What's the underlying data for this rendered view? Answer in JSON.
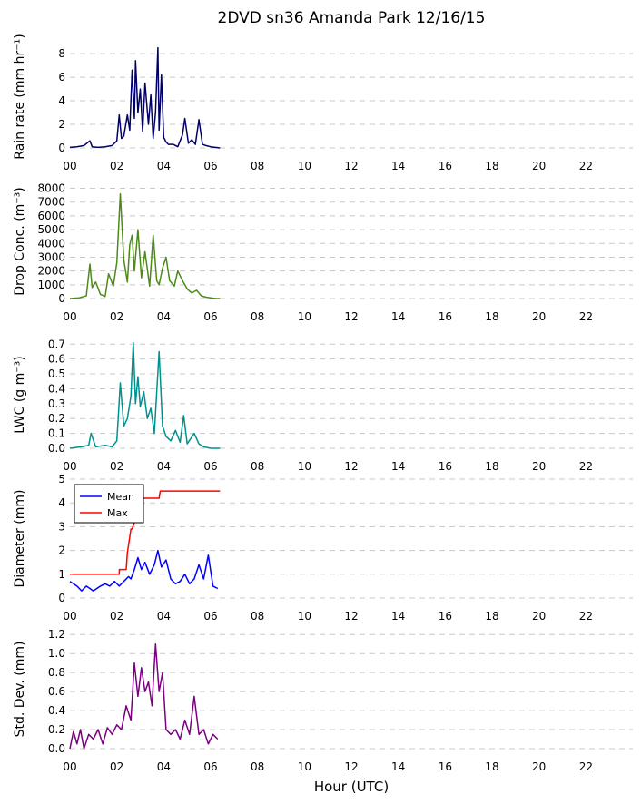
{
  "title": "2DVD sn36 Amanda Park 12/16/15",
  "xlabel": "Hour (UTC)",
  "x_ticks": [
    "00",
    "02",
    "04",
    "06",
    "08",
    "10",
    "12",
    "14",
    "16",
    "18",
    "20",
    "22"
  ],
  "chart_data": [
    {
      "type": "line",
      "ylabel": "Rain rate (mm hr⁻¹)",
      "xlim": [
        0,
        24
      ],
      "ylim": [
        0,
        8.7
      ],
      "yticks": [
        0,
        2,
        4,
        6,
        8
      ],
      "ytick_labels": [
        "0",
        "2",
        "4",
        "6",
        "8"
      ],
      "grid": true,
      "series": [
        {
          "color": "#000066",
          "x": [
            0.0,
            0.3,
            0.6,
            0.85,
            0.95,
            1.2,
            1.5,
            1.8,
            2.0,
            2.1,
            2.2,
            2.3,
            2.45,
            2.55,
            2.65,
            2.75,
            2.8,
            2.9,
            3.0,
            3.1,
            3.2,
            3.35,
            3.45,
            3.55,
            3.65,
            3.75,
            3.8,
            3.9,
            4.0,
            4.1,
            4.2,
            4.4,
            4.6,
            4.8,
            4.9,
            5.05,
            5.2,
            5.35,
            5.5,
            5.65,
            5.8,
            6.0,
            6.2,
            6.4
          ],
          "y": [
            0.05,
            0.1,
            0.2,
            0.6,
            0.1,
            0.05,
            0.1,
            0.2,
            0.6,
            2.8,
            0.8,
            1.0,
            2.8,
            1.5,
            6.6,
            2.5,
            7.4,
            3.0,
            5.0,
            1.4,
            5.5,
            2.0,
            4.5,
            0.8,
            3.0,
            8.5,
            1.5,
            6.2,
            0.9,
            0.5,
            0.3,
            0.3,
            0.1,
            1.1,
            2.5,
            0.4,
            0.7,
            0.3,
            2.4,
            0.3,
            0.2,
            0.1,
            0.05,
            0.0
          ]
        }
      ]
    },
    {
      "type": "line",
      "ylabel": "Drop Conc. (m⁻³)",
      "xlim": [
        0,
        24
      ],
      "ylim": [
        0,
        8300
      ],
      "yticks": [
        0,
        1000,
        2000,
        3000,
        4000,
        5000,
        6000,
        7000,
        8000
      ],
      "ytick_labels": [
        "0",
        "1000",
        "2000",
        "3000",
        "4000",
        "5000",
        "6000",
        "7000",
        "8000"
      ],
      "grid": true,
      "series": [
        {
          "color": "#4d8a1a",
          "x": [
            0.0,
            0.4,
            0.7,
            0.85,
            0.95,
            1.1,
            1.3,
            1.5,
            1.65,
            1.85,
            2.0,
            2.15,
            2.3,
            2.45,
            2.55,
            2.65,
            2.75,
            2.9,
            3.05,
            3.2,
            3.4,
            3.55,
            3.7,
            3.8,
            3.95,
            4.1,
            4.25,
            4.45,
            4.6,
            4.8,
            5.0,
            5.2,
            5.4,
            5.6,
            5.8,
            6.0,
            6.2,
            6.4
          ],
          "y": [
            0,
            50,
            200,
            2500,
            800,
            1200,
            300,
            150,
            1800,
            900,
            2600,
            7600,
            2800,
            1200,
            3900,
            4600,
            2000,
            5000,
            1500,
            3400,
            900,
            4600,
            1300,
            1000,
            2200,
            3000,
            1300,
            900,
            2000,
            1300,
            700,
            400,
            600,
            200,
            100,
            50,
            0,
            0
          ]
        }
      ]
    },
    {
      "type": "line",
      "ylabel": "LWC (g m⁻³)",
      "xlim": [
        0,
        24
      ],
      "ylim": [
        0,
        0.72
      ],
      "yticks": [
        0,
        0.1,
        0.2,
        0.3,
        0.4,
        0.5,
        0.6,
        0.7
      ],
      "ytick_labels": [
        "0.0",
        "0.1",
        "0.2",
        "0.3",
        "0.4",
        "0.5",
        "0.6",
        "0.7"
      ],
      "grid": true,
      "series": [
        {
          "color": "#009090",
          "x": [
            0.0,
            0.5,
            0.8,
            0.9,
            1.1,
            1.5,
            1.8,
            2.0,
            2.15,
            2.3,
            2.45,
            2.6,
            2.7,
            2.8,
            2.9,
            3.0,
            3.15,
            3.3,
            3.45,
            3.6,
            3.8,
            3.95,
            4.1,
            4.3,
            4.5,
            4.7,
            4.85,
            5.0,
            5.3,
            5.5,
            5.7,
            6.0,
            6.4
          ],
          "y": [
            0.0,
            0.01,
            0.02,
            0.1,
            0.01,
            0.02,
            0.01,
            0.05,
            0.44,
            0.15,
            0.2,
            0.35,
            0.71,
            0.3,
            0.48,
            0.28,
            0.38,
            0.2,
            0.27,
            0.1,
            0.65,
            0.15,
            0.08,
            0.05,
            0.12,
            0.04,
            0.22,
            0.03,
            0.1,
            0.03,
            0.01,
            0.0,
            0.0
          ]
        }
      ]
    },
    {
      "type": "line",
      "ylabel": "Diameter (mm)",
      "xlim": [
        0,
        24
      ],
      "ylim": [
        0,
        5
      ],
      "yticks": [
        0,
        1,
        2,
        3,
        4,
        5
      ],
      "ytick_labels": [
        "0",
        "1",
        "2",
        "3",
        "4",
        "5"
      ],
      "grid": true,
      "legend": "upper-left",
      "series": [
        {
          "name": "Mean",
          "color": "#0000ff",
          "x": [
            0.0,
            0.3,
            0.5,
            0.7,
            1.0,
            1.3,
            1.5,
            1.7,
            1.9,
            2.1,
            2.3,
            2.5,
            2.6,
            2.75,
            2.9,
            3.05,
            3.2,
            3.4,
            3.6,
            3.75,
            3.9,
            4.1,
            4.3,
            4.5,
            4.7,
            4.9,
            5.1,
            5.3,
            5.5,
            5.7,
            5.9,
            6.1,
            6.3
          ],
          "y": [
            0.7,
            0.5,
            0.3,
            0.5,
            0.3,
            0.5,
            0.6,
            0.5,
            0.7,
            0.5,
            0.7,
            0.9,
            0.8,
            1.2,
            1.7,
            1.2,
            1.5,
            1.0,
            1.4,
            2.0,
            1.3,
            1.6,
            0.8,
            0.6,
            0.7,
            1.0,
            0.6,
            0.8,
            1.4,
            0.8,
            1.8,
            0.5,
            0.4
          ]
        },
        {
          "name": "Max",
          "color": "#ff0000",
          "x": [
            0.0,
            1.6,
            1.61,
            2.1,
            2.11,
            2.4,
            2.45,
            2.6,
            2.65,
            2.9,
            3.0,
            3.2,
            3.6,
            3.8,
            3.85,
            6.4
          ],
          "y": [
            1.0,
            1.0,
            1.0,
            1.0,
            1.2,
            1.2,
            1.9,
            2.9,
            2.9,
            3.6,
            4.2,
            4.2,
            4.2,
            4.2,
            4.5,
            4.5
          ]
        }
      ]
    },
    {
      "type": "line",
      "ylabel": "Std. Dev. (mm)",
      "xlim": [
        0,
        24
      ],
      "ylim": [
        0,
        1.25
      ],
      "yticks": [
        0,
        0.2,
        0.4,
        0.6,
        0.8,
        1.0,
        1.2
      ],
      "ytick_labels": [
        "0.0",
        "0.2",
        "0.4",
        "0.6",
        "0.8",
        "1.0",
        "1.2"
      ],
      "grid": true,
      "series": [
        {
          "color": "#7a0080",
          "x": [
            0.0,
            0.15,
            0.3,
            0.45,
            0.6,
            0.8,
            1.0,
            1.2,
            1.4,
            1.6,
            1.8,
            2.0,
            2.2,
            2.4,
            2.6,
            2.75,
            2.9,
            3.05,
            3.2,
            3.35,
            3.5,
            3.65,
            3.8,
            3.95,
            4.1,
            4.3,
            4.5,
            4.7,
            4.9,
            5.1,
            5.3,
            5.5,
            5.7,
            5.9,
            6.1,
            6.3
          ],
          "y": [
            0.0,
            0.18,
            0.05,
            0.2,
            0.0,
            0.15,
            0.1,
            0.2,
            0.05,
            0.22,
            0.15,
            0.25,
            0.2,
            0.45,
            0.3,
            0.9,
            0.55,
            0.85,
            0.6,
            0.7,
            0.45,
            1.1,
            0.6,
            0.8,
            0.2,
            0.15,
            0.2,
            0.1,
            0.3,
            0.15,
            0.55,
            0.15,
            0.2,
            0.05,
            0.15,
            0.1
          ]
        }
      ]
    }
  ]
}
